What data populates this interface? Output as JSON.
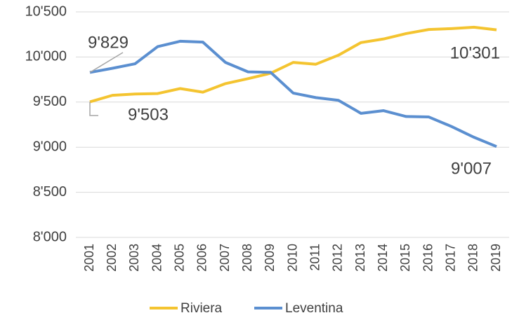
{
  "chart_data": {
    "type": "line",
    "categories": [
      "2001",
      "2002",
      "2003",
      "2004",
      "2005",
      "2006",
      "2007",
      "2008",
      "2009",
      "2010",
      "2011",
      "2012",
      "2013",
      "2014",
      "2015",
      "2016",
      "2017",
      "2018",
      "2019"
    ],
    "series": [
      {
        "name": "Riviera",
        "color": "#f4c430",
        "values": [
          9503,
          9575,
          9590,
          9595,
          9650,
          9610,
          9705,
          9760,
          9820,
          9940,
          9920,
          10020,
          10160,
          10200,
          10260,
          10305,
          10315,
          10330,
          10301
        ],
        "value_labels": [
          "9'503",
          null,
          null,
          null,
          null,
          null,
          null,
          null,
          null,
          null,
          null,
          null,
          null,
          null,
          null,
          null,
          null,
          null,
          "10'301"
        ]
      },
      {
        "name": "Leventina",
        "color": "#5b8fd0",
        "values": [
          9829,
          9875,
          9925,
          10115,
          10175,
          10165,
          9940,
          9835,
          9830,
          9600,
          9550,
          9520,
          9375,
          9405,
          9340,
          9335,
          9230,
          9110,
          9007
        ],
        "value_labels": [
          "9'829",
          null,
          null,
          null,
          null,
          null,
          null,
          null,
          null,
          null,
          null,
          null,
          null,
          null,
          null,
          null,
          null,
          null,
          "9'007"
        ]
      }
    ],
    "ylim": [
      8000,
      10500
    ],
    "yticks": [
      {
        "value": 8000,
        "label": "8'000"
      },
      {
        "value": 8500,
        "label": "8'500"
      },
      {
        "value": 9000,
        "label": "9'000"
      },
      {
        "value": 9500,
        "label": "9'500"
      },
      {
        "value": 10000,
        "label": "10'000"
      },
      {
        "value": 10500,
        "label": "10'500"
      }
    ],
    "grid": true,
    "legend": "bottom"
  }
}
